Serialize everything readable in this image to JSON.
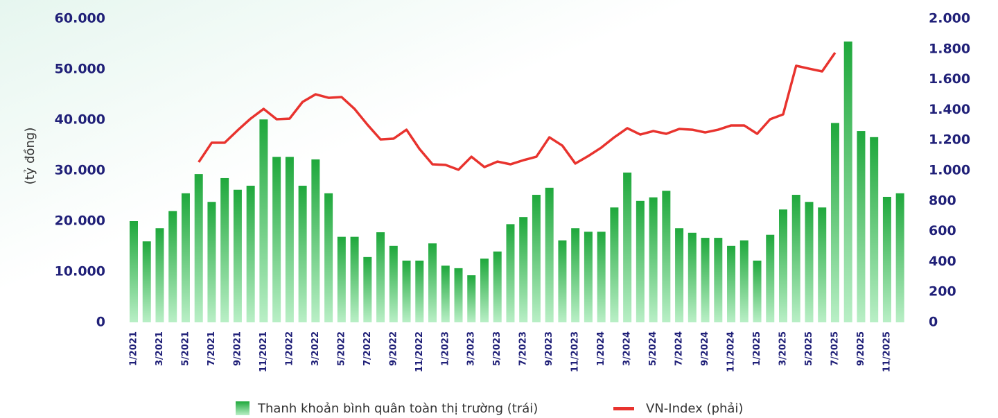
{
  "chart_data": {
    "type": "bar_line",
    "y_label": "(tỷ đồng)",
    "categories": [
      "1/2021",
      null,
      "3/2021",
      null,
      "5/2021",
      null,
      "7/2021",
      null,
      "9/2021",
      null,
      "11/2021",
      null,
      "1/2022",
      null,
      "3/2022",
      null,
      "5/2022",
      null,
      "7/2022",
      null,
      "9/2022",
      null,
      "11/2022",
      null,
      "1/2023",
      null,
      "3/2023",
      null,
      "5/2023",
      null,
      "7/2023",
      null,
      "9/2023",
      null,
      "11/2023",
      null,
      "1/2024",
      null,
      "3/2024",
      null,
      "5/2024",
      null,
      "7/2024",
      null,
      "9/2024",
      null,
      "11/2024",
      null,
      "1/2025",
      null,
      "3/2025",
      null,
      "5/2025",
      null,
      "7/2025",
      null,
      "9/2025",
      null,
      "11/2025",
      null
    ],
    "series": [
      {
        "name": "Thanh khoản bình quân toàn thị trường (trái)",
        "color": "#2db84a",
        "axis": "y",
        "values": [
          20000,
          16000,
          18600,
          22000,
          25500,
          29300,
          23800,
          28500,
          26200,
          27000,
          40100,
          32700,
          32700,
          27000,
          32200,
          25500,
          16900,
          16900,
          12900,
          17800,
          15100,
          12200,
          12200,
          15600,
          11200,
          10700,
          9300,
          12600,
          14000,
          19400,
          20800,
          25200,
          26600,
          16200,
          18600,
          17900,
          17900,
          22700,
          29600,
          24000,
          24700,
          26000,
          18600,
          17700,
          16700,
          16700,
          15100,
          16200,
          12200,
          17300,
          22300,
          25200,
          23800,
          22700,
          39400,
          55500,
          37800,
          36600,
          24800,
          25500
        ]
      },
      {
        "name": "VN-Index (phải)",
        "color": "#e8332e",
        "axis": "y2",
        "values": [
          null,
          null,
          null,
          null,
          null,
          1055,
          1183,
          1183,
          1265,
          1342,
          1406,
          1338,
          1342,
          1452,
          1502,
          1479,
          1484,
          1406,
          1301,
          1205,
          1210,
          1269,
          1142,
          1041,
          1037,
          1005,
          1091,
          1023,
          1059,
          1041,
          1068,
          1091,
          1219,
          1164,
          1046,
          1096,
          1151,
          1219,
          1279,
          1237,
          1260,
          1242,
          1274,
          1269,
          1251,
          1269,
          1297,
          1297,
          1242,
          1338,
          1370,
          1690,
          1671,
          1653,
          1776,
          null,
          null,
          null,
          null,
          null
        ]
      }
    ],
    "ylim": [
      0,
      60000
    ],
    "yticks": [
      0,
      {
        "value": 10000,
        "label": "10.000"
      },
      {
        "value": 20000,
        "label": "20.000"
      },
      {
        "value": 30000,
        "label": "30.000"
      },
      {
        "value": 40000,
        "label": "40.000"
      },
      {
        "value": 50000,
        "label": "50.000"
      },
      {
        "value": 60000,
        "label": "60.000"
      }
    ],
    "y2lim": [
      0,
      2000
    ],
    "y2ticks": [
      0,
      200,
      400,
      600,
      800,
      {
        "value": 1000,
        "label": "1.000"
      },
      {
        "value": 1200,
        "label": "1.200"
      },
      {
        "value": 1400,
        "label": "1.400"
      },
      {
        "value": 1600,
        "label": "1.600"
      },
      {
        "value": 1800,
        "label": "1.800"
      },
      {
        "value": 2000,
        "label": "2.000"
      }
    ]
  }
}
